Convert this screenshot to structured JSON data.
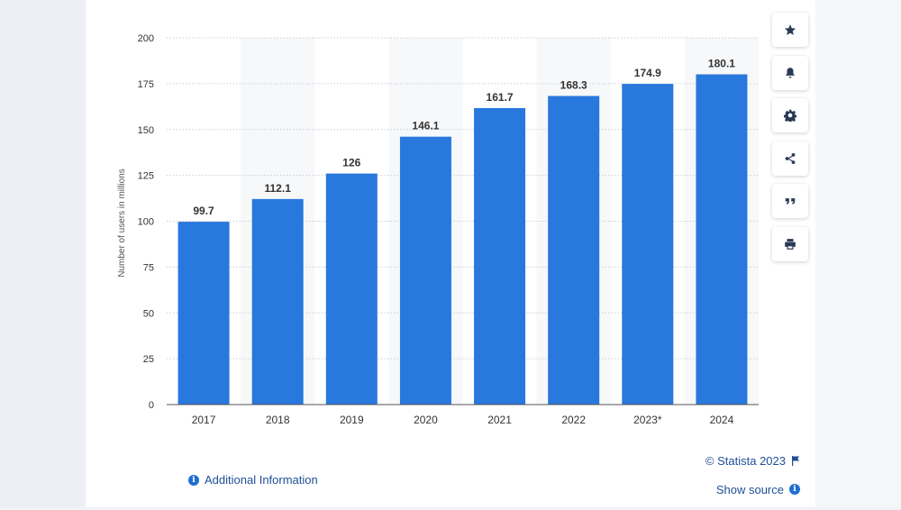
{
  "chart_data": {
    "type": "bar",
    "categories": [
      "2017",
      "2018",
      "2019",
      "2020",
      "2021",
      "2022",
      "2023*",
      "2024"
    ],
    "values": [
      99.7,
      112.1,
      126,
      146.1,
      161.7,
      168.3,
      174.9,
      180.1
    ],
    "value_labels": [
      "99.7",
      "112.1",
      "126",
      "146.1",
      "161.7",
      "168.3",
      "174.9",
      "180.1"
    ],
    "ylabel": "Number of users in millions",
    "ylim": [
      0,
      200
    ],
    "yticks": [
      "0",
      "25",
      "50",
      "75",
      "100",
      "125",
      "150",
      "175",
      "200"
    ],
    "grid": true,
    "bar_color": "#2878dd"
  },
  "toolbar": {
    "icons": [
      "star-icon",
      "bell-icon",
      "gear-icon",
      "share-icon",
      "quote-icon",
      "print-icon"
    ]
  },
  "footer": {
    "additional_info": "Additional Information",
    "copyright": "© Statista 2023",
    "show_source": "Show source"
  }
}
